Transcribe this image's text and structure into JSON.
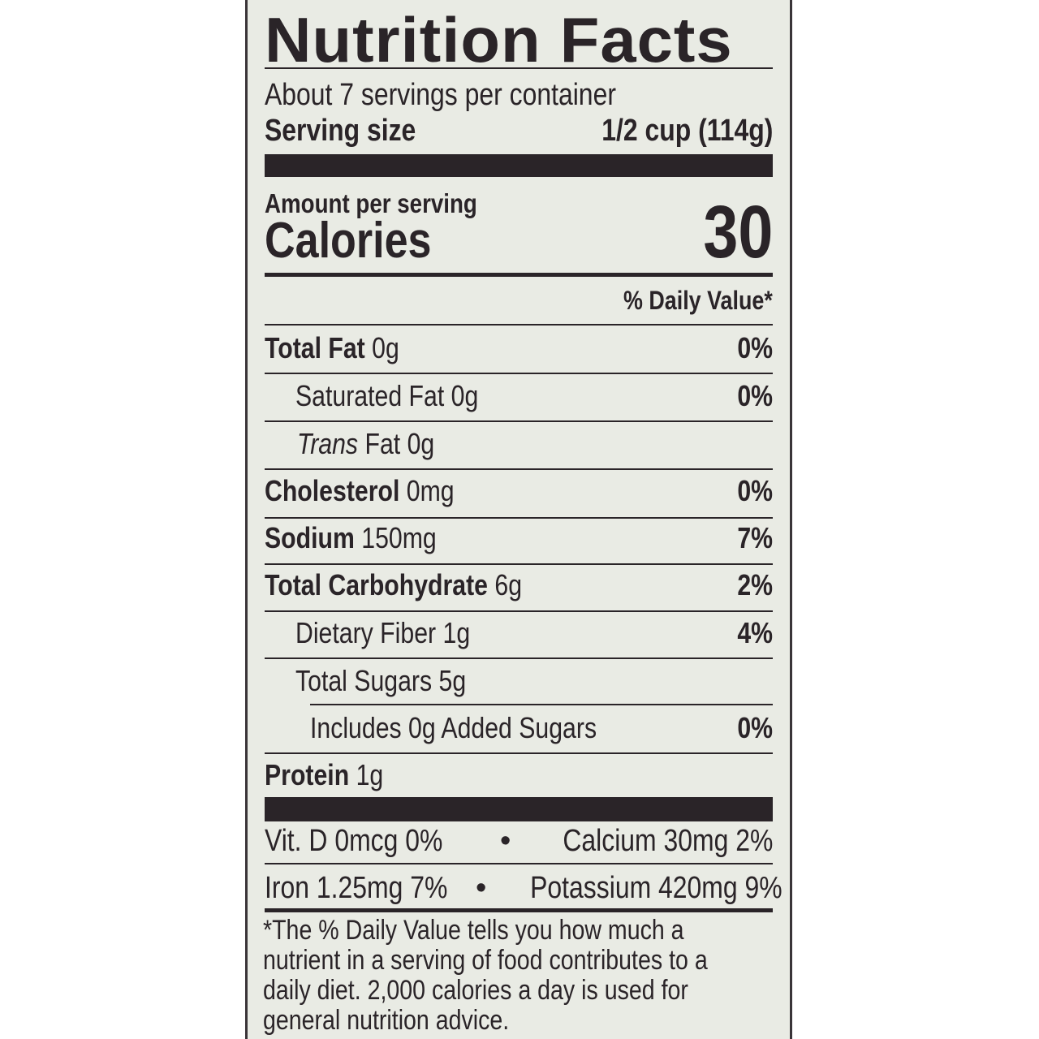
{
  "title": "Nutrition Facts",
  "servings_per_container": "About 7 servings per container",
  "serving_size": {
    "label": "Serving size",
    "value": "1/2 cup (114g)"
  },
  "amount_per_serving": "Amount per serving",
  "calories": {
    "label": "Calories",
    "value": "30"
  },
  "daily_value_header": "% Daily Value*",
  "nutrients": [
    {
      "name": "Total Fat",
      "amount": "0g",
      "dv": "0%"
    },
    {
      "name": "Saturated Fat",
      "amount": "0g",
      "dv": "0%"
    },
    {
      "name": "Trans",
      "suffix": "Fat 0g",
      "dv": ""
    },
    {
      "name": "Cholesterol",
      "amount": "0mg",
      "dv": "0%"
    },
    {
      "name": "Sodium",
      "amount": "150mg",
      "dv": "7%"
    },
    {
      "name": "Total Carbohydrate",
      "amount": "6g",
      "dv": "2%"
    },
    {
      "name": "Dietary Fiber",
      "amount": "1g",
      "dv": "4%"
    },
    {
      "name": "Total Sugars",
      "amount": "5g",
      "dv": ""
    },
    {
      "name": "Includes 0g Added Sugars",
      "amount": "",
      "dv": "0%"
    },
    {
      "name": "Protein",
      "amount": "1g",
      "dv": ""
    }
  ],
  "vitamins": [
    {
      "left": "Vit. D 0mcg 0%",
      "right": "Calcium 30mg 2%"
    },
    {
      "left": "Iron 1.25mg 7%",
      "right": "Potassium 420mg 9%"
    }
  ],
  "bullet": "•",
  "footnote": [
    "*The % Daily Value tells you how much a",
    "nutrient in a serving of food contributes to a",
    "daily diet. 2,000 calories a day is used for",
    "general nutrition advice."
  ]
}
